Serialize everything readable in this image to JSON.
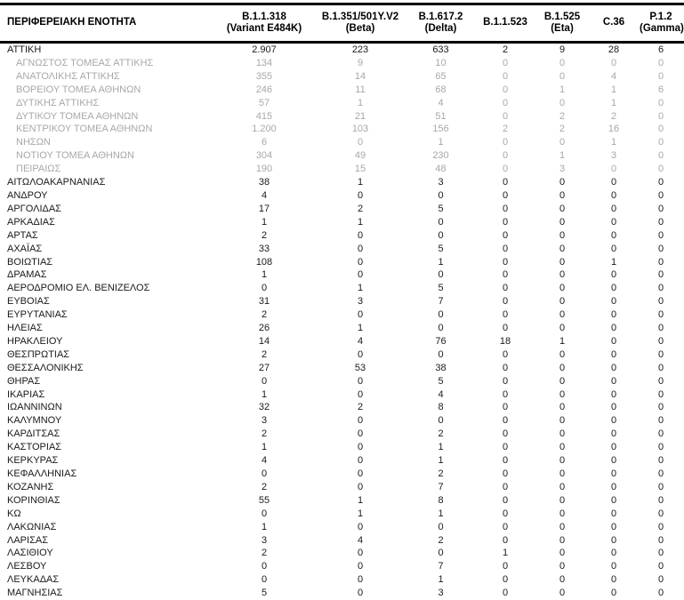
{
  "colors": {
    "text": "#1a1a1a",
    "muted_subrow": "#a8a8a8",
    "header_border": "#000000",
    "background": "#ffffff"
  },
  "table": {
    "columns": [
      {
        "line1": "ΠΕΡΙΦΕΡΕΙΑΚΗ ΕΝΟΤΗΤΑ",
        "line2": ""
      },
      {
        "line1": "B.1.1.318",
        "line2": "(Variant E484K)"
      },
      {
        "line1": "B.1.351/501Y.V2",
        "line2": "(Beta)"
      },
      {
        "line1": "B.1.617.2",
        "line2": "(Delta)"
      },
      {
        "line1": "B.1.1.523",
        "line2": ""
      },
      {
        "line1": "B.1.525",
        "line2": "(Eta)"
      },
      {
        "line1": "C.36",
        "line2": ""
      },
      {
        "line1": "P.1.2",
        "line2": "(Gamma)"
      }
    ],
    "rows": [
      {
        "name": "ΑΤΤΙΚΗ",
        "level": "region",
        "values": [
          "2.907",
          "223",
          "633",
          "2",
          "9",
          "28",
          "6"
        ]
      },
      {
        "name": "ΑΓΝΩΣΤΟΣ ΤΟΜΕΑΣ ΑΤΤΙΚΗΣ",
        "level": "sub",
        "values": [
          "134",
          "9",
          "10",
          "0",
          "0",
          "0",
          "0"
        ]
      },
      {
        "name": "ΑΝΑΤΟΛΙΚΗΣ ΑΤΤΙΚΗΣ",
        "level": "sub",
        "values": [
          "355",
          "14",
          "65",
          "0",
          "0",
          "4",
          "0"
        ]
      },
      {
        "name": "ΒΟΡΕΙΟΥ ΤΟΜΕΑ ΑΘΗΝΩΝ",
        "level": "sub",
        "values": [
          "246",
          "11",
          "68",
          "0",
          "1",
          "1",
          "6"
        ]
      },
      {
        "name": "ΔΥΤΙΚΗΣ ΑΤΤΙΚΗΣ",
        "level": "sub",
        "values": [
          "57",
          "1",
          "4",
          "0",
          "0",
          "1",
          "0"
        ]
      },
      {
        "name": "ΔΥΤΙΚΟΥ ΤΟΜΕΑ ΑΘΗΝΩΝ",
        "level": "sub",
        "values": [
          "415",
          "21",
          "51",
          "0",
          "2",
          "2",
          "0"
        ]
      },
      {
        "name": "ΚΕΝΤΡΙΚΟΥ ΤΟΜΕΑ ΑΘΗΝΩΝ",
        "level": "sub",
        "values": [
          "1.200",
          "103",
          "156",
          "2",
          "2",
          "16",
          "0"
        ]
      },
      {
        "name": "ΝΗΣΩΝ",
        "level": "sub",
        "values": [
          "6",
          "0",
          "1",
          "0",
          "0",
          "1",
          "0"
        ]
      },
      {
        "name": "ΝΟΤΙΟΥ ΤΟΜΕΑ ΑΘΗΝΩΝ",
        "level": "sub",
        "values": [
          "304",
          "49",
          "230",
          "0",
          "1",
          "3",
          "0"
        ]
      },
      {
        "name": "ΠΕΙΡΑΙΩΣ",
        "level": "sub",
        "values": [
          "190",
          "15",
          "48",
          "0",
          "3",
          "0",
          "0"
        ]
      },
      {
        "name": "ΑΙΤΩΛΟΑΚΑΡΝΑΝΙΑΣ",
        "level": "region",
        "values": [
          "38",
          "1",
          "3",
          "0",
          "0",
          "0",
          "0"
        ]
      },
      {
        "name": "ΑΝΔΡΟΥ",
        "level": "region",
        "values": [
          "4",
          "0",
          "0",
          "0",
          "0",
          "0",
          "0"
        ]
      },
      {
        "name": "ΑΡΓΟΛΙΔΑΣ",
        "level": "region",
        "values": [
          "17",
          "2",
          "5",
          "0",
          "0",
          "0",
          "0"
        ]
      },
      {
        "name": "ΑΡΚΑΔΙΑΣ",
        "level": "region",
        "values": [
          "1",
          "1",
          "0",
          "0",
          "0",
          "0",
          "0"
        ]
      },
      {
        "name": "ΑΡΤΑΣ",
        "level": "region",
        "values": [
          "2",
          "0",
          "0",
          "0",
          "0",
          "0",
          "0"
        ]
      },
      {
        "name": "ΑΧΑΪΑΣ",
        "level": "region",
        "values": [
          "33",
          "0",
          "5",
          "0",
          "0",
          "0",
          "0"
        ]
      },
      {
        "name": "ΒΟΙΩΤΙΑΣ",
        "level": "region",
        "values": [
          "108",
          "0",
          "1",
          "0",
          "0",
          "1",
          "0"
        ]
      },
      {
        "name": "ΔΡΑΜΑΣ",
        "level": "region",
        "values": [
          "1",
          "0",
          "0",
          "0",
          "0",
          "0",
          "0"
        ]
      },
      {
        "name": "ΑΕΡΟΔΡΟΜΙΟ ΕΛ. ΒΕΝΙΖΕΛΟΣ",
        "level": "region",
        "values": [
          "0",
          "1",
          "5",
          "0",
          "0",
          "0",
          "0"
        ]
      },
      {
        "name": "ΕΥΒΟΙΑΣ",
        "level": "region",
        "values": [
          "31",
          "3",
          "7",
          "0",
          "0",
          "0",
          "0"
        ]
      },
      {
        "name": "ΕΥΡΥΤΑΝΙΑΣ",
        "level": "region",
        "values": [
          "2",
          "0",
          "0",
          "0",
          "0",
          "0",
          "0"
        ]
      },
      {
        "name": "ΗΛΕΙΑΣ",
        "level": "region",
        "values": [
          "26",
          "1",
          "0",
          "0",
          "0",
          "0",
          "0"
        ]
      },
      {
        "name": "ΗΡΑΚΛΕΙΟΥ",
        "level": "region",
        "values": [
          "14",
          "4",
          "76",
          "18",
          "1",
          "0",
          "0"
        ]
      },
      {
        "name": "ΘΕΣΠΡΩΤΙΑΣ",
        "level": "region",
        "values": [
          "2",
          "0",
          "0",
          "0",
          "0",
          "0",
          "0"
        ]
      },
      {
        "name": "ΘΕΣΣΑΛΟΝΙΚΗΣ",
        "level": "region",
        "values": [
          "27",
          "53",
          "38",
          "0",
          "0",
          "0",
          "0"
        ]
      },
      {
        "name": "ΘΗΡΑΣ",
        "level": "region",
        "values": [
          "0",
          "0",
          "5",
          "0",
          "0",
          "0",
          "0"
        ]
      },
      {
        "name": "ΙΚΑΡΙΑΣ",
        "level": "region",
        "values": [
          "1",
          "0",
          "4",
          "0",
          "0",
          "0",
          "0"
        ]
      },
      {
        "name": "ΙΩΑΝΝΙΝΩΝ",
        "level": "region",
        "values": [
          "32",
          "2",
          "8",
          "0",
          "0",
          "0",
          "0"
        ]
      },
      {
        "name": "ΚΑΛΥΜΝΟΥ",
        "level": "region",
        "values": [
          "3",
          "0",
          "0",
          "0",
          "0",
          "0",
          "0"
        ]
      },
      {
        "name": "ΚΑΡΔΙΤΣΑΣ",
        "level": "region",
        "values": [
          "2",
          "0",
          "2",
          "0",
          "0",
          "0",
          "0"
        ]
      },
      {
        "name": "ΚΑΣΤΟΡΙΑΣ",
        "level": "region",
        "values": [
          "1",
          "0",
          "1",
          "0",
          "0",
          "0",
          "0"
        ]
      },
      {
        "name": "ΚΕΡΚΥΡΑΣ",
        "level": "region",
        "values": [
          "4",
          "0",
          "1",
          "0",
          "0",
          "0",
          "0"
        ]
      },
      {
        "name": "ΚΕΦΑΛΛΗΝΙΑΣ",
        "level": "region",
        "values": [
          "0",
          "0",
          "2",
          "0",
          "0",
          "0",
          "0"
        ]
      },
      {
        "name": "ΚΟΖΑΝΗΣ",
        "level": "region",
        "values": [
          "2",
          "0",
          "7",
          "0",
          "0",
          "0",
          "0"
        ]
      },
      {
        "name": "ΚΟΡΙΝΘΙΑΣ",
        "level": "region",
        "values": [
          "55",
          "1",
          "8",
          "0",
          "0",
          "0",
          "0"
        ]
      },
      {
        "name": "ΚΩ",
        "level": "region",
        "values": [
          "0",
          "1",
          "1",
          "0",
          "0",
          "0",
          "0"
        ]
      },
      {
        "name": "ΛΑΚΩΝΙΑΣ",
        "level": "region",
        "values": [
          "1",
          "0",
          "0",
          "0",
          "0",
          "0",
          "0"
        ]
      },
      {
        "name": "ΛΑΡΙΣΑΣ",
        "level": "region",
        "values": [
          "3",
          "4",
          "2",
          "0",
          "0",
          "0",
          "0"
        ]
      },
      {
        "name": "ΛΑΣΙΘΙΟΥ",
        "level": "region",
        "values": [
          "2",
          "0",
          "0",
          "1",
          "0",
          "0",
          "0"
        ]
      },
      {
        "name": "ΛΕΣΒΟΥ",
        "level": "region",
        "values": [
          "0",
          "0",
          "7",
          "0",
          "0",
          "0",
          "0"
        ]
      },
      {
        "name": "ΛΕΥΚΑΔΑΣ",
        "level": "region",
        "values": [
          "0",
          "0",
          "1",
          "0",
          "0",
          "0",
          "0"
        ]
      },
      {
        "name": "ΜΑΓΝΗΣΙΑΣ",
        "level": "region",
        "values": [
          "5",
          "0",
          "3",
          "0",
          "0",
          "0",
          "0"
        ]
      }
    ]
  }
}
